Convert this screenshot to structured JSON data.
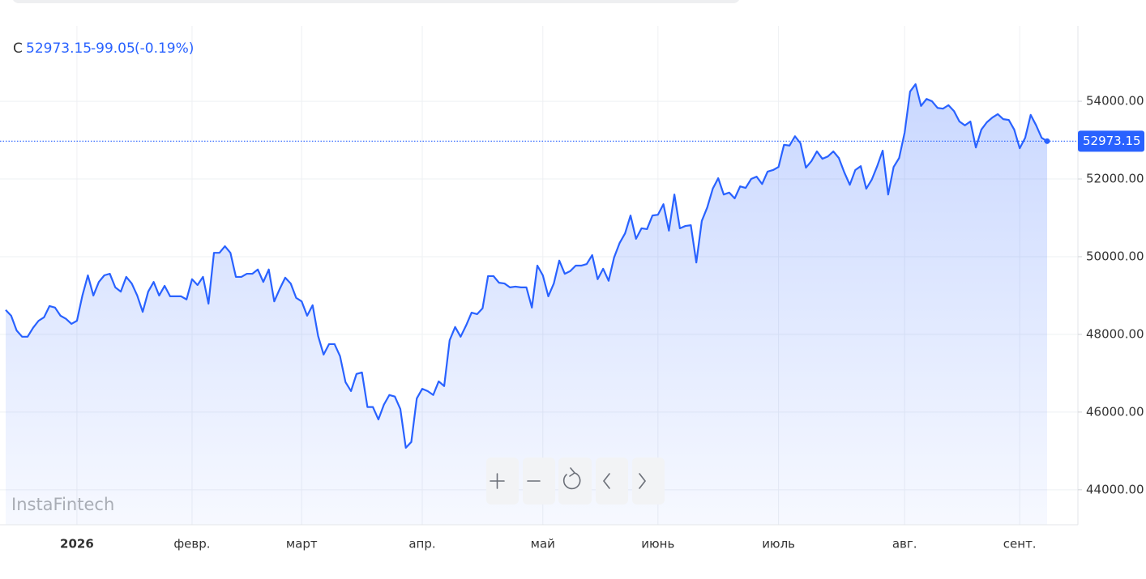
{
  "chart_data": {
    "type": "area-line",
    "header": {
      "symbol": "C",
      "change": "-99.05",
      "change_pct": "(-0.19%)"
    },
    "watermark": "InstaFintech",
    "color": "#2962ff",
    "categories": [
      null,
      null,
      null,
      null,
      null,
      null,
      null,
      null,
      null,
      null,
      null,
      null,
      null,
      "2026",
      null,
      null,
      null,
      null,
      null,
      null,
      null,
      null,
      null,
      null,
      null,
      null,
      null,
      null,
      null,
      null,
      null,
      null,
      null,
      null,
      "февр.",
      null,
      null,
      null,
      null,
      null,
      null,
      null,
      null,
      null,
      null,
      null,
      null,
      null,
      null,
      null,
      null,
      null,
      null,
      null,
      "март",
      null,
      null,
      null,
      null,
      null,
      null,
      null,
      null,
      null,
      null,
      null,
      null,
      null,
      null,
      null,
      null,
      null,
      null,
      null,
      null,
      null,
      "апр.",
      null,
      null,
      null,
      null,
      null,
      null,
      null,
      null,
      null,
      null,
      null,
      null,
      null,
      null,
      null,
      null,
      null,
      null,
      null,
      null,
      null,
      "май",
      null,
      null,
      null,
      null,
      null,
      null,
      null,
      null,
      null,
      null,
      null,
      null,
      null,
      null,
      null,
      null,
      null,
      null,
      null,
      null,
      "июнь",
      null,
      null,
      null,
      null,
      null,
      null,
      null,
      null,
      null,
      null,
      null,
      null,
      null,
      null,
      null,
      null,
      null,
      null,
      null,
      null,
      null,
      "июль",
      null,
      null,
      null,
      null,
      null,
      null,
      null,
      null,
      null,
      null,
      null,
      null,
      null,
      null,
      null,
      null,
      null,
      null,
      null,
      null,
      null,
      null,
      "авг.",
      null,
      null,
      null,
      null,
      null,
      null,
      null,
      null,
      null,
      null,
      null,
      null,
      null,
      null,
      null,
      null,
      null,
      null,
      null,
      null,
      "сент.",
      null,
      null,
      null,
      null,
      null
    ],
    "values": [
      48630,
      48480,
      48100,
      47940,
      47940,
      48170,
      48350,
      48440,
      48730,
      48690,
      48480,
      48400,
      48270,
      48350,
      49000,
      49520,
      49000,
      49350,
      49520,
      49560,
      49210,
      49100,
      49480,
      49310,
      49000,
      48580,
      49100,
      49350,
      49000,
      49250,
      48980,
      48980,
      48980,
      48900,
      49420,
      49270,
      49480,
      48790,
      50100,
      50100,
      50270,
      50100,
      49480,
      49480,
      49560,
      49560,
      49670,
      49350,
      49670,
      48850,
      49170,
      49460,
      49310,
      48940,
      48850,
      48480,
      48750,
      47960,
      47480,
      47750,
      47750,
      47440,
      46770,
      46540,
      46980,
      47020,
      46130,
      46130,
      45810,
      46190,
      46440,
      46400,
      46080,
      45080,
      45230,
      46350,
      46600,
      46540,
      46440,
      46790,
      46670,
      47850,
      48190,
      47940,
      48230,
      48560,
      48520,
      48670,
      49500,
      49500,
      49330,
      49310,
      49210,
      49230,
      49210,
      49210,
      48690,
      49770,
      49520,
      48980,
      49310,
      49900,
      49560,
      49630,
      49770,
      49770,
      49810,
      50040,
      49420,
      49690,
      49380,
      49980,
      50350,
      50600,
      51060,
      50460,
      50730,
      50710,
      51060,
      51080,
      51350,
      50670,
      51600,
      50730,
      50790,
      50810,
      49850,
      50920,
      51270,
      51750,
      52020,
      51600,
      51650,
      51500,
      51810,
      51770,
      52000,
      52060,
      51870,
      52190,
      52230,
      52310,
      52880,
      52860,
      53100,
      52920,
      52290,
      52460,
      52710,
      52520,
      52580,
      52710,
      52540,
      52170,
      51850,
      52230,
      52330,
      51750,
      51980,
      52330,
      52730,
      51600,
      52310,
      52540,
      53190,
      54250,
      54440,
      53880,
      54060,
      54000,
      53830,
      53810,
      53900,
      53750,
      53480,
      53380,
      53480,
      52810,
      53270,
      53460,
      53580,
      53670,
      53540,
      53520,
      53270,
      52790,
      53060,
      53650,
      53380,
      53060,
      52973.15
    ],
    "ylim": [
      43100,
      55940
    ],
    "yticks": [
      {
        "value": 44000,
        "label": "44000.00"
      },
      {
        "value": 46000,
        "label": "46000.00"
      },
      {
        "value": 48000,
        "label": "48000.00"
      },
      {
        "value": 50000,
        "label": "50000.00"
      },
      {
        "value": 52000,
        "label": "52000.00"
      },
      {
        "value": 54000,
        "label": "54000.00"
      }
    ],
    "grid": true
  }
}
